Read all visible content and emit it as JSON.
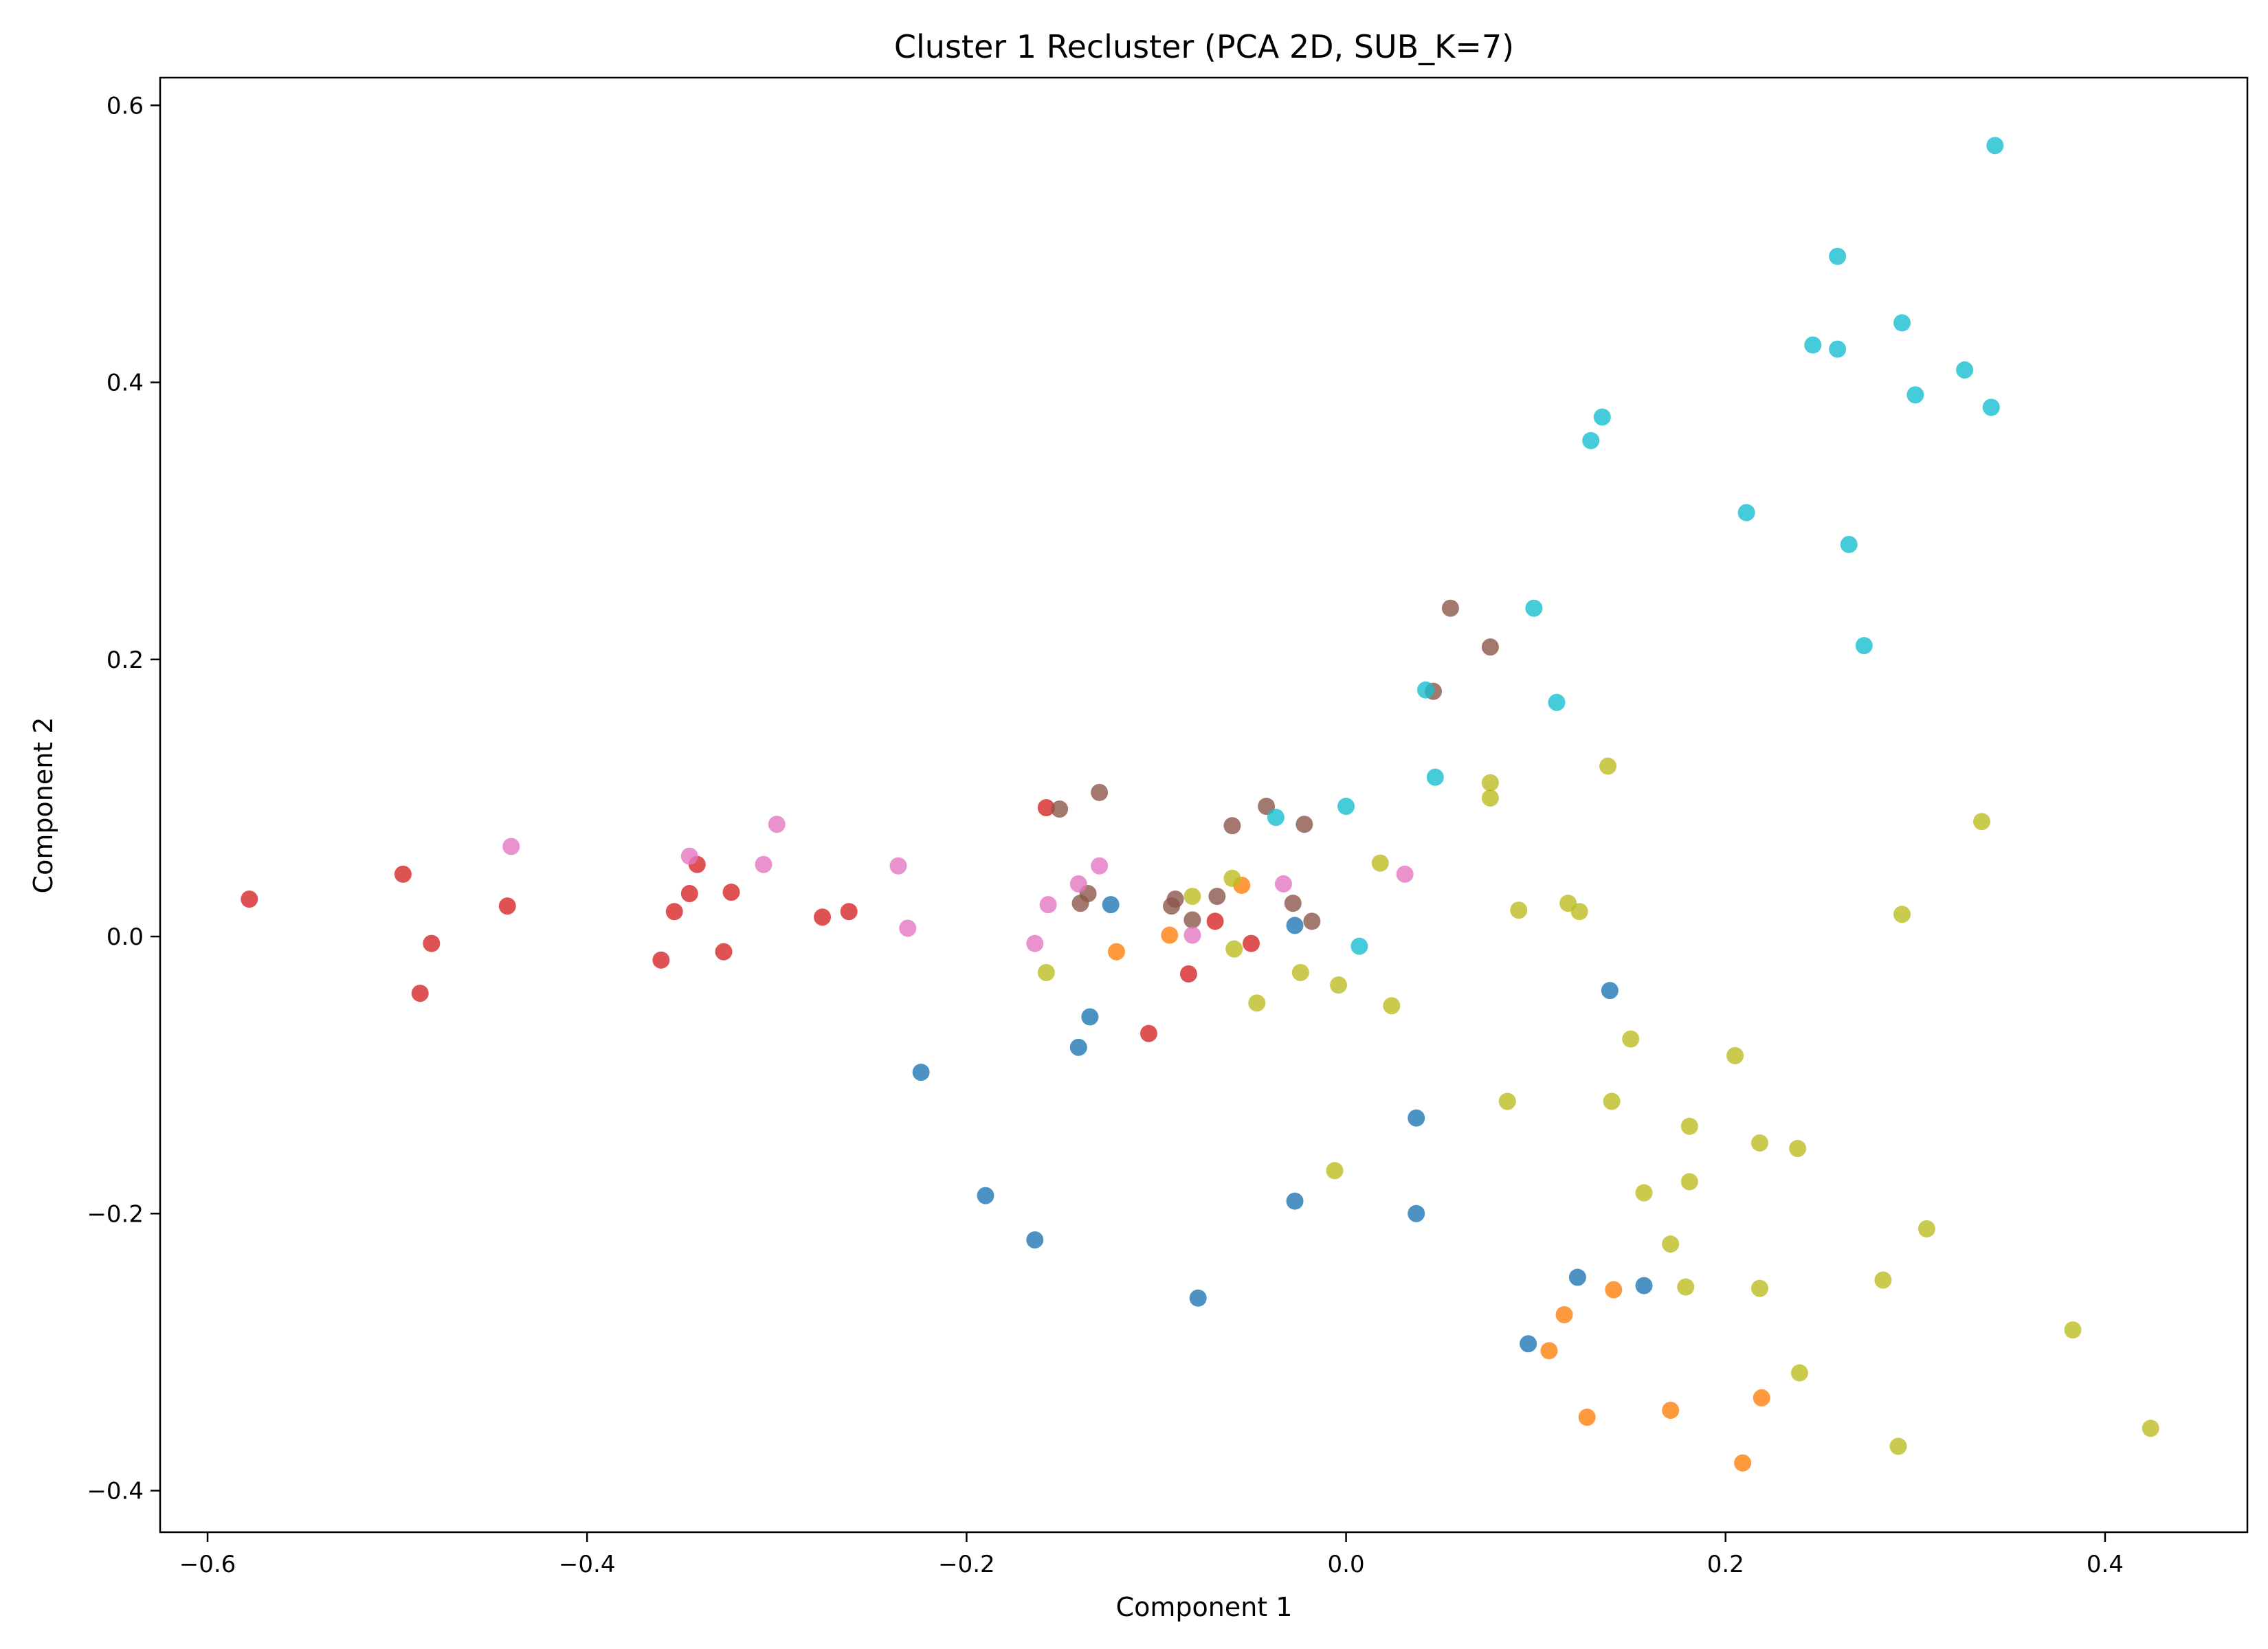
{
  "chart_data": {
    "type": "scatter",
    "title": "Cluster 1 Recluster (PCA 2D, SUB_K=7)",
    "xlabel": "Component 1",
    "ylabel": "Component 2",
    "xlim": [
      -0.625,
      0.475
    ],
    "ylim": [
      -0.43,
      0.62
    ],
    "xticks": [
      -0.6,
      -0.4,
      -0.2,
      0.0,
      0.2,
      0.4
    ],
    "xtick_labels": [
      "−0.6",
      "−0.4",
      "−0.2",
      "0.0",
      "0.2",
      "0.4"
    ],
    "yticks": [
      -0.4,
      -0.2,
      0.0,
      0.2,
      0.4,
      0.6
    ],
    "ytick_labels": [
      "−0.4",
      "−0.2",
      "0.0",
      "0.2",
      "0.4",
      "0.6"
    ],
    "grid": false,
    "legend": "none",
    "series": [
      {
        "color": "#1f77b4",
        "points": [
          [
            -0.124,
            0.023
          ],
          [
            -0.027,
            0.008
          ],
          [
            -0.135,
            -0.058
          ],
          [
            -0.141,
            -0.08
          ],
          [
            -0.224,
            -0.098
          ],
          [
            -0.19,
            -0.187
          ],
          [
            -0.164,
            -0.219
          ],
          [
            -0.078,
            -0.261
          ],
          [
            -0.027,
            -0.191
          ],
          [
            0.037,
            -0.131
          ],
          [
            0.037,
            -0.2
          ],
          [
            0.139,
            -0.039
          ],
          [
            0.122,
            -0.246
          ],
          [
            0.157,
            -0.252
          ],
          [
            0.096,
            -0.294
          ]
        ]
      },
      {
        "color": "#ff7f0e",
        "points": [
          [
            -0.121,
            -0.011
          ],
          [
            -0.093,
            0.001
          ],
          [
            -0.055,
            0.037
          ],
          [
            0.115,
            -0.273
          ],
          [
            0.107,
            -0.299
          ],
          [
            0.141,
            -0.255
          ],
          [
            0.127,
            -0.347
          ],
          [
            0.171,
            -0.342
          ],
          [
            0.219,
            -0.333
          ],
          [
            0.209,
            -0.38
          ]
        ]
      },
      {
        "color": "#d62728",
        "points": [
          [
            -0.578,
            0.027
          ],
          [
            -0.497,
            0.045
          ],
          [
            -0.482,
            -0.005
          ],
          [
            -0.488,
            -0.041
          ],
          [
            -0.442,
            0.022
          ],
          [
            -0.361,
            -0.017
          ],
          [
            -0.354,
            0.018
          ],
          [
            -0.346,
            0.031
          ],
          [
            -0.342,
            0.052
          ],
          [
            -0.328,
            -0.011
          ],
          [
            -0.324,
            0.032
          ],
          [
            -0.276,
            0.014
          ],
          [
            -0.262,
            0.018
          ],
          [
            -0.158,
            0.093
          ],
          [
            -0.104,
            -0.07
          ],
          [
            -0.083,
            -0.027
          ],
          [
            -0.069,
            0.011
          ],
          [
            -0.05,
            -0.005
          ]
        ]
      },
      {
        "color": "#8c564b",
        "points": [
          [
            -0.151,
            0.092
          ],
          [
            -0.13,
            0.104
          ],
          [
            -0.14,
            0.024
          ],
          [
            -0.136,
            0.031
          ],
          [
            -0.092,
            0.022
          ],
          [
            -0.09,
            0.027
          ],
          [
            -0.081,
            0.012
          ],
          [
            -0.068,
            0.029
          ],
          [
            -0.06,
            0.08
          ],
          [
            -0.042,
            0.094
          ],
          [
            -0.028,
            0.024
          ],
          [
            -0.022,
            0.081
          ],
          [
            -0.018,
            0.011
          ],
          [
            0.046,
            0.177
          ],
          [
            0.055,
            0.237
          ],
          [
            0.076,
            0.209
          ]
        ]
      },
      {
        "color": "#e377c2",
        "points": [
          [
            -0.44,
            0.065
          ],
          [
            -0.346,
            0.058
          ],
          [
            -0.307,
            0.052
          ],
          [
            -0.3,
            0.081
          ],
          [
            -0.236,
            0.051
          ],
          [
            -0.231,
            0.006
          ],
          [
            -0.164,
            -0.005
          ],
          [
            -0.157,
            0.023
          ],
          [
            -0.141,
            0.038
          ],
          [
            -0.13,
            0.051
          ],
          [
            -0.081,
            0.001
          ],
          [
            -0.033,
            0.038
          ],
          [
            0.031,
            0.045
          ]
        ]
      },
      {
        "color": "#bcbd22",
        "points": [
          [
            -0.158,
            -0.026
          ],
          [
            -0.081,
            0.029
          ],
          [
            -0.06,
            0.042
          ],
          [
            -0.059,
            -0.009
          ],
          [
            -0.047,
            -0.048
          ],
          [
            -0.024,
            -0.026
          ],
          [
            -0.004,
            -0.035
          ],
          [
            0.018,
            0.053
          ],
          [
            0.024,
            -0.05
          ],
          [
            -0.006,
            -0.169
          ],
          [
            0.076,
            0.111
          ],
          [
            0.076,
            0.1
          ],
          [
            0.091,
            0.019
          ],
          [
            0.085,
            -0.119
          ],
          [
            0.117,
            0.024
          ],
          [
            0.123,
            0.018
          ],
          [
            0.138,
            0.123
          ],
          [
            0.14,
            -0.119
          ],
          [
            0.15,
            -0.074
          ],
          [
            0.157,
            -0.185
          ],
          [
            0.181,
            -0.137
          ],
          [
            0.181,
            -0.177
          ],
          [
            0.171,
            -0.222
          ],
          [
            0.179,
            -0.253
          ],
          [
            0.205,
            -0.086
          ],
          [
            0.218,
            -0.149
          ],
          [
            0.238,
            -0.153
          ],
          [
            0.218,
            -0.254
          ],
          [
            0.239,
            -0.315
          ],
          [
            0.283,
            -0.248
          ],
          [
            0.291,
            -0.368
          ],
          [
            0.293,
            0.016
          ],
          [
            0.306,
            -0.211
          ],
          [
            0.335,
            0.083
          ],
          [
            0.383,
            -0.284
          ],
          [
            0.424,
            -0.355
          ]
        ]
      },
      {
        "color": "#17becf",
        "points": [
          [
            -0.037,
            0.086
          ],
          [
            0.0,
            0.094
          ],
          [
            0.007,
            -0.007
          ],
          [
            0.042,
            0.178
          ],
          [
            0.047,
            0.115
          ],
          [
            0.099,
            0.237
          ],
          [
            0.111,
            0.169
          ],
          [
            0.129,
            0.358
          ],
          [
            0.135,
            0.375
          ],
          [
            0.211,
            0.306
          ],
          [
            0.246,
            0.427
          ],
          [
            0.259,
            0.491
          ],
          [
            0.259,
            0.424
          ],
          [
            0.265,
            0.283
          ],
          [
            0.273,
            0.21
          ],
          [
            0.293,
            0.443
          ],
          [
            0.3,
            0.391
          ],
          [
            0.326,
            0.409
          ],
          [
            0.34,
            0.382
          ],
          [
            0.342,
            0.571
          ]
        ]
      }
    ]
  }
}
